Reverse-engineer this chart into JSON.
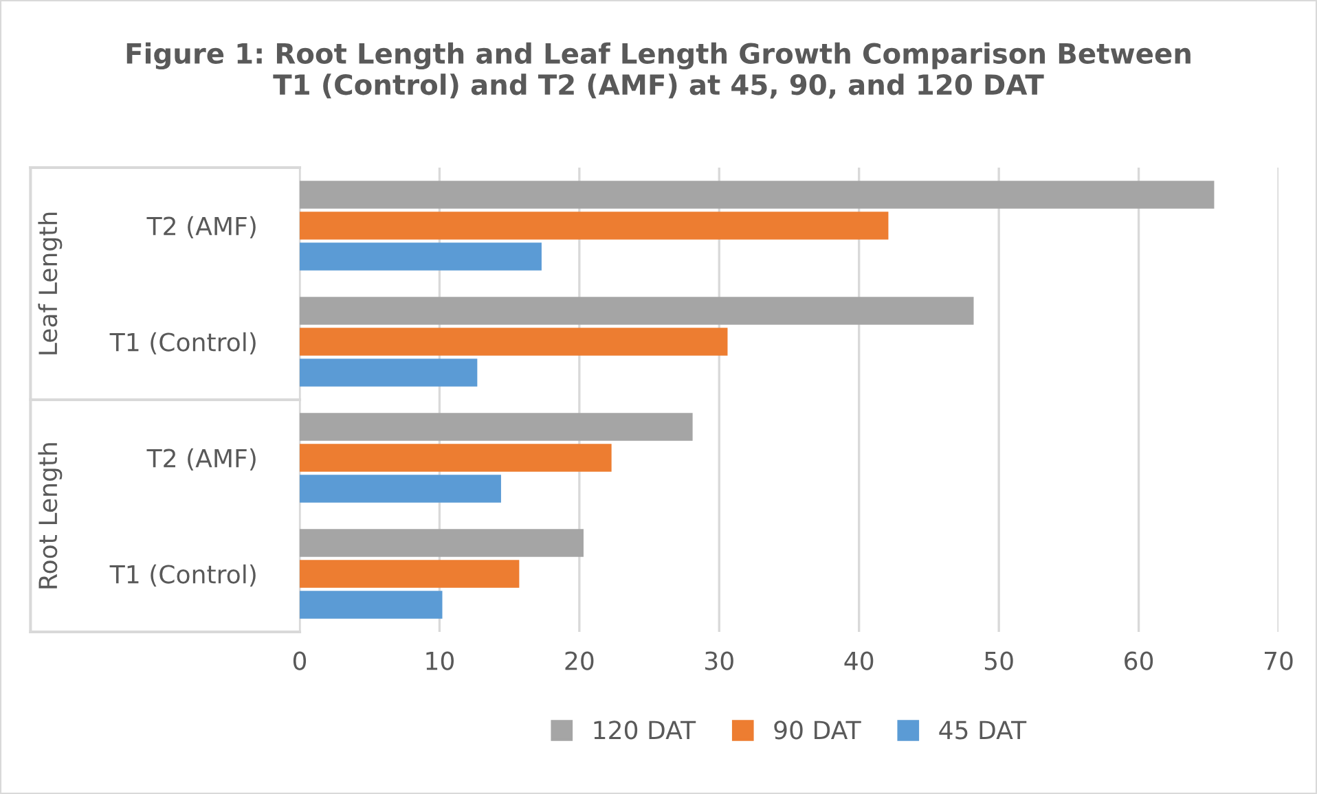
{
  "chart_data": {
    "type": "bar",
    "orientation": "horizontal",
    "title": "Figure 1: Root Length and Leaf Length Growth Comparison Between\nT1 (Control) and T2 (AMF) at 45, 90, and 120 DAT",
    "categories": [
      "T2 (AMF)",
      "T1 (Control)",
      "T2 (AMF)",
      "T1 (Control)"
    ],
    "annotations": [
      "Leaf Length",
      "Root Length"
    ],
    "series": [
      {
        "name": "120 DAT",
        "color": "#a5a5a5",
        "values": [
          65.4,
          48.2,
          28.1,
          20.3
        ]
      },
      {
        "name": "90 DAT",
        "color": "#ed7d31",
        "values": [
          42.1,
          30.6,
          22.3,
          15.7
        ]
      },
      {
        "name": "45 DAT",
        "color": "#5b9bd5",
        "values": [
          17.3,
          12.7,
          14.4,
          10.2
        ]
      }
    ],
    "xlim": [
      0,
      70
    ],
    "xticks": [
      0,
      10,
      20,
      30,
      40,
      50,
      60,
      70
    ],
    "grid": "x",
    "legend": "bottom"
  }
}
